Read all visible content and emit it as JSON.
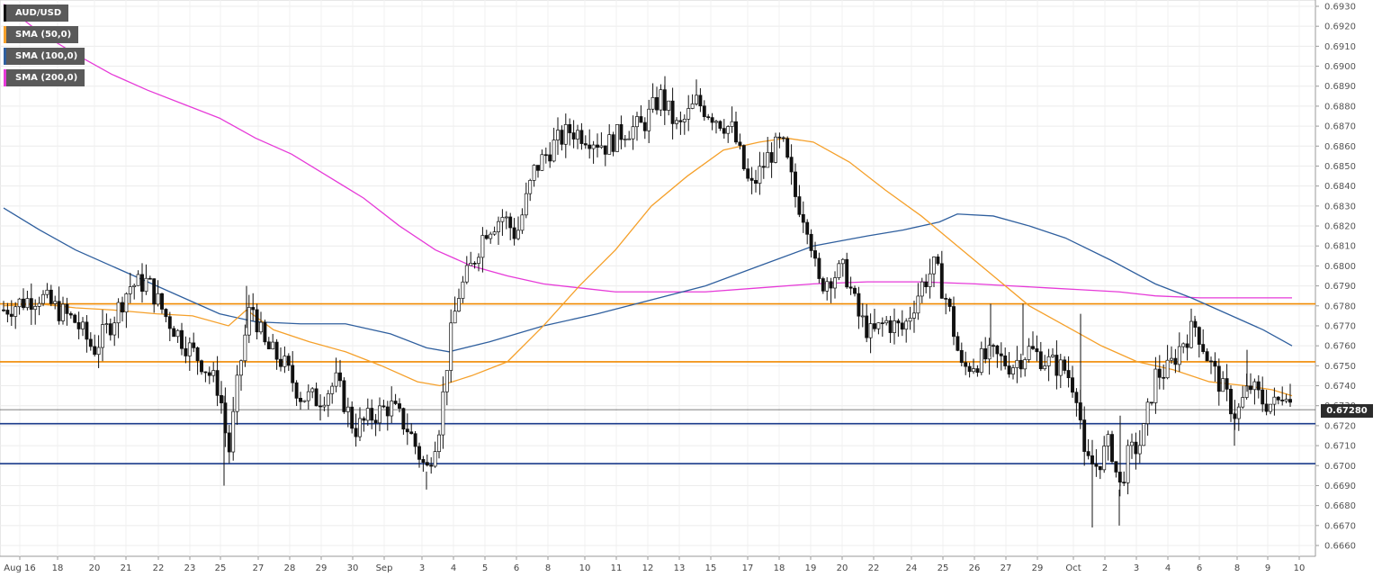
{
  "chart_data": {
    "type": "candlestick",
    "symbol": "AUD/USD",
    "timeframe_note": "hourly candles",
    "ylim": [
      0.6655,
      0.6935
    ],
    "y_ticks": [
      "0.6930",
      "0.6920",
      "0.6910",
      "0.6900",
      "0.6890",
      "0.6880",
      "0.6870",
      "0.6860",
      "0.6850",
      "0.6840",
      "0.6830",
      "0.6820",
      "0.6810",
      "0.6800",
      "0.6790",
      "0.6780",
      "0.6770",
      "0.6760",
      "0.6750",
      "0.6740",
      "0.6730",
      "0.6720",
      "0.6710",
      "0.6700",
      "0.6690",
      "0.6680",
      "0.6670",
      "0.6660"
    ],
    "x_ticks": [
      "Aug 16",
      "18",
      "20",
      "21",
      "22",
      "23",
      "25",
      "27",
      "28",
      "29",
      "30",
      "Sep",
      "3",
      "4",
      "5",
      "6",
      "8",
      "10",
      "11",
      "12",
      "13",
      "15",
      "17",
      "18",
      "19",
      "20",
      "22",
      "24",
      "25",
      "26",
      "27",
      "29",
      "Oct",
      "2",
      "3",
      "4",
      "6",
      "8",
      "9",
      "10"
    ],
    "grid": true,
    "legend": [
      {
        "name": "AUD/USD",
        "color": "#111111"
      },
      {
        "name": "SMA (50,0)",
        "color": "#f5a02a"
      },
      {
        "name": "SMA (100,0)",
        "color": "#2f5f9e"
      },
      {
        "name": "SMA (200,0)",
        "color": "#e63ad8"
      }
    ],
    "last_price": "0.67280",
    "horizontal_levels": [
      {
        "value": 0.6781,
        "color": "#f08a00"
      },
      {
        "value": 0.6752,
        "color": "#f08a00"
      },
      {
        "value": 0.6721,
        "color": "#1a3a8a"
      },
      {
        "value": 0.6701,
        "color": "#1a3a8a"
      }
    ],
    "price_path": [
      [
        0,
        0.6778
      ],
      [
        20,
        0.6782
      ],
      [
        40,
        0.6785
      ],
      [
        60,
        0.6778
      ],
      [
        80,
        0.6772
      ],
      [
        100,
        0.6758
      ],
      [
        120,
        0.6772
      ],
      [
        140,
        0.679
      ],
      [
        160,
        0.6792
      ],
      [
        180,
        0.6775
      ],
      [
        200,
        0.6762
      ],
      [
        220,
        0.6752
      ],
      [
        240,
        0.6738
      ],
      [
        250,
        0.6705
      ],
      [
        262,
        0.6748
      ],
      [
        275,
        0.6782
      ],
      [
        290,
        0.676
      ],
      [
        310,
        0.6752
      ],
      [
        330,
        0.6735
      ],
      [
        350,
        0.6733
      ],
      [
        370,
        0.6742
      ],
      [
        390,
        0.6718
      ],
      [
        410,
        0.6725
      ],
      [
        430,
        0.673
      ],
      [
        450,
        0.6718
      ],
      [
        470,
        0.6697
      ],
      [
        485,
        0.6722
      ],
      [
        495,
        0.676
      ],
      [
        505,
        0.6785
      ],
      [
        520,
        0.68
      ],
      [
        535,
        0.6818
      ],
      [
        555,
        0.6825
      ],
      [
        570,
        0.6815
      ],
      [
        590,
        0.6848
      ],
      [
        610,
        0.686
      ],
      [
        630,
        0.6868
      ],
      [
        650,
        0.6865
      ],
      [
        670,
        0.686
      ],
      [
        690,
        0.6868
      ],
      [
        710,
        0.687
      ],
      [
        730,
        0.6885
      ],
      [
        750,
        0.6868
      ],
      [
        770,
        0.6882
      ],
      [
        790,
        0.6875
      ],
      [
        810,
        0.6868
      ],
      [
        830,
        0.6838
      ],
      [
        850,
        0.6855
      ],
      [
        865,
        0.6862
      ],
      [
        880,
        0.6835
      ],
      [
        895,
        0.682
      ],
      [
        905,
        0.679
      ],
      [
        920,
        0.6795
      ],
      [
        935,
        0.6798
      ],
      [
        950,
        0.6775
      ],
      [
        965,
        0.6765
      ],
      [
        980,
        0.6772
      ],
      [
        1000,
        0.6768
      ],
      [
        1020,
        0.679
      ],
      [
        1035,
        0.68
      ],
      [
        1050,
        0.678
      ],
      [
        1065,
        0.6748
      ],
      [
        1080,
        0.6752
      ],
      [
        1100,
        0.6755
      ],
      [
        1120,
        0.675
      ],
      [
        1140,
        0.6758
      ],
      [
        1160,
        0.6752
      ],
      [
        1180,
        0.6748
      ],
      [
        1195,
        0.6735
      ],
      [
        1200,
        0.6702
      ],
      [
        1215,
        0.67
      ],
      [
        1230,
        0.6712
      ],
      [
        1240,
        0.6688
      ],
      [
        1250,
        0.6705
      ],
      [
        1265,
        0.6712
      ],
      [
        1280,
        0.6745
      ],
      [
        1295,
        0.6748
      ],
      [
        1310,
        0.6762
      ],
      [
        1325,
        0.677
      ],
      [
        1340,
        0.6752
      ],
      [
        1355,
        0.6738
      ],
      [
        1370,
        0.6725
      ],
      [
        1385,
        0.674
      ],
      [
        1400,
        0.6732
      ],
      [
        1415,
        0.673
      ],
      [
        1425,
        0.674
      ],
      [
        1432,
        0.6728
      ]
    ],
    "sma50_path": [
      [
        0,
        0.678
      ],
      [
        40,
        0.6781
      ],
      [
        80,
        0.6779
      ],
      [
        120,
        0.6778
      ],
      [
        170,
        0.6776
      ],
      [
        210,
        0.6775
      ],
      [
        250,
        0.677
      ],
      [
        270,
        0.6778
      ],
      [
        300,
        0.6768
      ],
      [
        340,
        0.6762
      ],
      [
        380,
        0.6757
      ],
      [
        420,
        0.675
      ],
      [
        460,
        0.6742
      ],
      [
        485,
        0.674
      ],
      [
        520,
        0.6745
      ],
      [
        560,
        0.6752
      ],
      [
        600,
        0.677
      ],
      [
        640,
        0.679
      ],
      [
        680,
        0.6808
      ],
      [
        720,
        0.683
      ],
      [
        760,
        0.6845
      ],
      [
        800,
        0.6858
      ],
      [
        840,
        0.6862
      ],
      [
        870,
        0.6864
      ],
      [
        900,
        0.6862
      ],
      [
        940,
        0.6852
      ],
      [
        980,
        0.6838
      ],
      [
        1020,
        0.6825
      ],
      [
        1060,
        0.681
      ],
      [
        1100,
        0.6795
      ],
      [
        1140,
        0.678
      ],
      [
        1180,
        0.677
      ],
      [
        1220,
        0.676
      ],
      [
        1260,
        0.6752
      ],
      [
        1300,
        0.6748
      ],
      [
        1340,
        0.6742
      ],
      [
        1380,
        0.674
      ],
      [
        1410,
        0.6738
      ],
      [
        1432,
        0.6735
      ]
    ],
    "sma100_path": [
      [
        0,
        0.6829
      ],
      [
        40,
        0.6818
      ],
      [
        80,
        0.6808
      ],
      [
        120,
        0.68
      ],
      [
        160,
        0.6792
      ],
      [
        200,
        0.6784
      ],
      [
        240,
        0.6776
      ],
      [
        280,
        0.6772
      ],
      [
        330,
        0.6771
      ],
      [
        380,
        0.6771
      ],
      [
        430,
        0.6766
      ],
      [
        470,
        0.6759
      ],
      [
        495,
        0.6757
      ],
      [
        540,
        0.6762
      ],
      [
        600,
        0.677
      ],
      [
        660,
        0.6776
      ],
      [
        720,
        0.6783
      ],
      [
        780,
        0.679
      ],
      [
        840,
        0.68
      ],
      [
        900,
        0.681
      ],
      [
        960,
        0.6815
      ],
      [
        1000,
        0.6818
      ],
      [
        1040,
        0.6822
      ],
      [
        1060,
        0.6826
      ],
      [
        1100,
        0.6825
      ],
      [
        1140,
        0.682
      ],
      [
        1180,
        0.6814
      ],
      [
        1230,
        0.6803
      ],
      [
        1280,
        0.6791
      ],
      [
        1320,
        0.6784
      ],
      [
        1360,
        0.6776
      ],
      [
        1400,
        0.6768
      ],
      [
        1432,
        0.676
      ]
    ],
    "sma200_path": [
      [
        0,
        0.6931
      ],
      [
        40,
        0.6917
      ],
      [
        80,
        0.6906
      ],
      [
        120,
        0.6896
      ],
      [
        160,
        0.6888
      ],
      [
        200,
        0.6881
      ],
      [
        240,
        0.6874
      ],
      [
        280,
        0.6864
      ],
      [
        320,
        0.6856
      ],
      [
        360,
        0.6845
      ],
      [
        400,
        0.6834
      ],
      [
        440,
        0.682
      ],
      [
        480,
        0.6808
      ],
      [
        520,
        0.68
      ],
      [
        560,
        0.6795
      ],
      [
        600,
        0.6791
      ],
      [
        640,
        0.6789
      ],
      [
        680,
        0.6787
      ],
      [
        720,
        0.6787
      ],
      [
        780,
        0.6787
      ],
      [
        840,
        0.6789
      ],
      [
        900,
        0.6791
      ],
      [
        960,
        0.6792
      ],
      [
        1020,
        0.6792
      ],
      [
        1080,
        0.6791
      ],
      [
        1120,
        0.679
      ],
      [
        1160,
        0.6789
      ],
      [
        1200,
        0.6788
      ],
      [
        1240,
        0.6787
      ],
      [
        1280,
        0.6785
      ],
      [
        1330,
        0.6784
      ],
      [
        1380,
        0.6784
      ],
      [
        1432,
        0.6784
      ]
    ],
    "wicks": [
      [
        245,
        0.669
      ],
      [
        245,
        0.6735
      ],
      [
        270,
        0.679
      ],
      [
        470,
        0.6688
      ],
      [
        735,
        0.6895
      ],
      [
        1097,
        0.6781
      ],
      [
        1133,
        0.6781
      ],
      [
        1197,
        0.6776
      ],
      [
        1210,
        0.6669
      ],
      [
        1240,
        0.667
      ],
      [
        1241,
        0.6725
      ],
      [
        1324,
        0.6775
      ],
      [
        1368,
        0.671
      ],
      [
        1382,
        0.6758
      ]
    ]
  }
}
